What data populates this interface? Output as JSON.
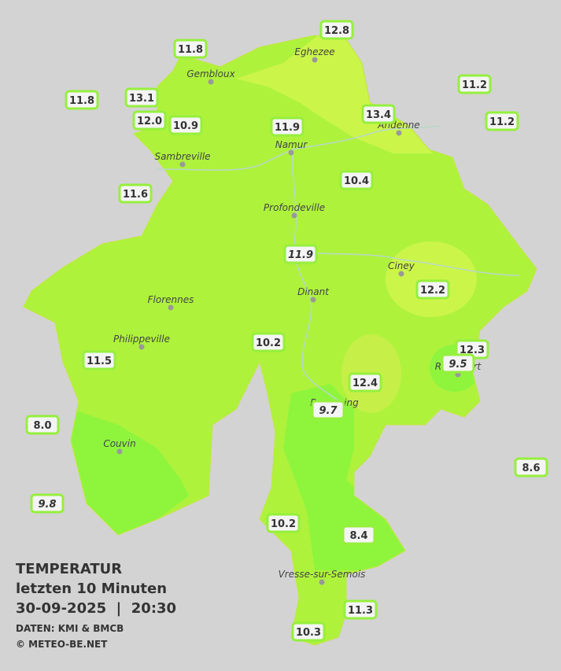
{
  "legend": {
    "title": "TEMPERATUR",
    "subtitle": "letzten 10 Minuten",
    "datetime": "30-09-2025  |  20:30",
    "source": "DATEN: KMI & BMCB",
    "copyright": "© METEO-BE.NET"
  },
  "cities": [
    "Eghezee",
    "Gembloux",
    "Andenne",
    "Namur",
    "Sambreville",
    "Profondeville",
    "Ciney",
    "Dinant",
    "Florennes",
    "Philippeville",
    "Rochefort",
    "Beauraing",
    "Couvin",
    "Vresse-sur-Semois"
  ],
  "stations": [
    "12.8",
    "11.8",
    "11.2",
    "11.8",
    "13.1",
    "13.4",
    "11.2",
    "12.0",
    "10.9",
    "11.9",
    "10.4",
    "11.6",
    "11.9",
    "12.2",
    "10.2",
    "12.3",
    "9.5",
    "11.5",
    "12.4",
    "9.7",
    "8.0",
    "8.6",
    "9.8",
    "10.2",
    "8.4",
    "11.3",
    "10.3"
  ]
}
